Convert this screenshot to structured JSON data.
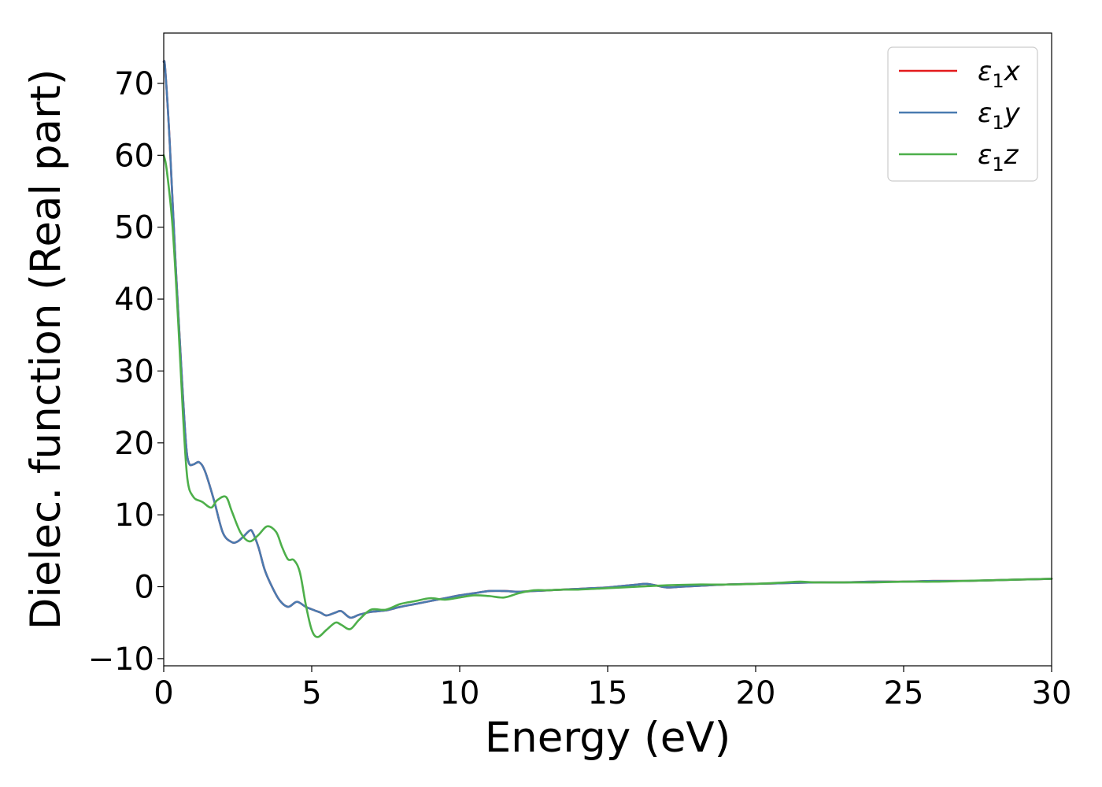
{
  "chart_data": {
    "type": "line",
    "title": "",
    "xlabel": "Energy (eV)",
    "ylabel": "Dielec. function (Real part)",
    "xlim": [
      0,
      30
    ],
    "ylim": [
      -11,
      77
    ],
    "xticks": [
      0,
      5,
      10,
      15,
      20,
      25,
      30
    ],
    "xtick_labels": [
      "0",
      "5",
      "10",
      "15",
      "20",
      "25",
      "30"
    ],
    "yticks": [
      -10,
      0,
      10,
      20,
      30,
      40,
      50,
      60,
      70
    ],
    "ytick_labels": [
      "−10",
      "0",
      "10",
      "20",
      "30",
      "40",
      "50",
      "60",
      "70"
    ],
    "grid": false,
    "legend_position": "top-right",
    "series": [
      {
        "name": "ε₁x",
        "legend_base": "ε",
        "legend_sub": "1",
        "legend_var": "x",
        "color": "#e41a1c",
        "x": [
          0,
          0.05,
          0.2,
          0.4,
          0.6,
          0.75,
          0.85,
          1.0,
          1.2,
          1.4,
          1.7,
          2.0,
          2.3,
          2.5,
          2.7,
          2.9,
          3.0,
          3.2,
          3.4,
          3.6,
          3.9,
          4.2,
          4.5,
          4.8,
          5.1,
          5.3,
          5.5,
          5.8,
          6.0,
          6.3,
          6.6,
          7.0,
          7.5,
          8.0,
          8.5,
          9.0,
          9.5,
          10.0,
          10.5,
          11.0,
          11.5,
          12.0,
          12.5,
          13.0,
          13.5,
          14.0,
          14.5,
          15.0,
          15.5,
          16.0,
          16.3,
          16.6,
          17.0,
          17.5,
          18.0,
          19.0,
          20.0,
          21.0,
          22.0,
          23.0,
          24.0,
          25.0,
          26.0,
          27.0,
          28.0,
          29.0,
          30.0
        ],
        "values": [
          73,
          72,
          62,
          45,
          30,
          20,
          17.2,
          17,
          17.3,
          16,
          12,
          7.5,
          6.2,
          6.3,
          7,
          7.8,
          7.6,
          5.5,
          2.5,
          0.5,
          -1.8,
          -2.8,
          -2.1,
          -2.8,
          -3.3,
          -3.6,
          -4.0,
          -3.6,
          -3.4,
          -4.3,
          -3.9,
          -3.5,
          -3.3,
          -2.8,
          -2.4,
          -2.0,
          -1.6,
          -1.2,
          -0.9,
          -0.6,
          -0.6,
          -0.7,
          -0.6,
          -0.5,
          -0.4,
          -0.3,
          -0.2,
          -0.1,
          0.1,
          0.3,
          0.4,
          0.2,
          -0.1,
          0.0,
          0.1,
          0.3,
          0.4,
          0.5,
          0.6,
          0.6,
          0.7,
          0.7,
          0.8,
          0.8,
          0.9,
          1.0,
          1.1
        ]
      },
      {
        "name": "ε₁y",
        "legend_base": "ε",
        "legend_sub": "1",
        "legend_var": "y",
        "color": "#4a7bb0",
        "x": [
          0,
          0.05,
          0.2,
          0.4,
          0.6,
          0.75,
          0.85,
          1.0,
          1.2,
          1.4,
          1.7,
          2.0,
          2.3,
          2.5,
          2.7,
          2.9,
          3.0,
          3.2,
          3.4,
          3.6,
          3.9,
          4.2,
          4.5,
          4.8,
          5.1,
          5.3,
          5.5,
          5.8,
          6.0,
          6.3,
          6.6,
          7.0,
          7.5,
          8.0,
          8.5,
          9.0,
          9.5,
          10.0,
          10.5,
          11.0,
          11.5,
          12.0,
          12.5,
          13.0,
          13.5,
          14.0,
          14.5,
          15.0,
          15.5,
          16.0,
          16.3,
          16.6,
          17.0,
          17.5,
          18.0,
          19.0,
          20.0,
          21.0,
          22.0,
          23.0,
          24.0,
          25.0,
          26.0,
          27.0,
          28.0,
          29.0,
          30.0
        ],
        "values": [
          73,
          72,
          62,
          45,
          30,
          20,
          17.2,
          17,
          17.3,
          16,
          12,
          7.5,
          6.2,
          6.3,
          7,
          7.8,
          7.6,
          5.5,
          2.5,
          0.5,
          -1.8,
          -2.8,
          -2.1,
          -2.8,
          -3.3,
          -3.6,
          -4.0,
          -3.6,
          -3.4,
          -4.3,
          -3.9,
          -3.5,
          -3.3,
          -2.8,
          -2.4,
          -2.0,
          -1.6,
          -1.2,
          -0.9,
          -0.6,
          -0.6,
          -0.7,
          -0.6,
          -0.5,
          -0.4,
          -0.3,
          -0.2,
          -0.1,
          0.1,
          0.3,
          0.4,
          0.2,
          -0.1,
          0.0,
          0.1,
          0.3,
          0.4,
          0.5,
          0.6,
          0.6,
          0.7,
          0.7,
          0.8,
          0.8,
          0.9,
          1.0,
          1.1
        ]
      },
      {
        "name": "ε₁z",
        "legend_base": "ε",
        "legend_sub": "1",
        "legend_var": "z",
        "color": "#4daf4a",
        "x": [
          0,
          0.1,
          0.3,
          0.5,
          0.65,
          0.8,
          1.0,
          1.3,
          1.6,
          1.8,
          2.1,
          2.3,
          2.6,
          2.9,
          3.2,
          3.5,
          3.8,
          4.0,
          4.2,
          4.4,
          4.6,
          4.8,
          5.0,
          5.2,
          5.5,
          5.8,
          6.0,
          6.3,
          6.6,
          7.0,
          7.5,
          8.0,
          8.5,
          9.0,
          9.5,
          10.0,
          10.5,
          11.0,
          11.5,
          12.0,
          12.5,
          13.0,
          13.5,
          14.0,
          15.0,
          16.0,
          17.0,
          18.0,
          19.0,
          20.0,
          21.0,
          21.5,
          22.0,
          23.0,
          24.0,
          25.0,
          26.0,
          27.0,
          28.0,
          29.0,
          30.0
        ],
        "values": [
          60,
          58,
          50,
          36,
          24,
          15,
          12.5,
          11.8,
          11,
          12,
          12.5,
          10.5,
          7.5,
          6.3,
          7.2,
          8.4,
          7.6,
          5.5,
          3.8,
          3.7,
          2.0,
          -2.5,
          -6.0,
          -7.0,
          -6.0,
          -5.0,
          -5.3,
          -5.9,
          -4.6,
          -3.2,
          -3.2,
          -2.4,
          -2.0,
          -1.6,
          -1.8,
          -1.5,
          -1.2,
          -1.3,
          -1.5,
          -0.9,
          -0.5,
          -0.5,
          -0.4,
          -0.4,
          -0.2,
          0.0,
          0.2,
          0.3,
          0.3,
          0.4,
          0.6,
          0.7,
          0.6,
          0.6,
          0.6,
          0.7,
          0.7,
          0.8,
          0.9,
          1.0,
          1.1
        ]
      }
    ]
  }
}
